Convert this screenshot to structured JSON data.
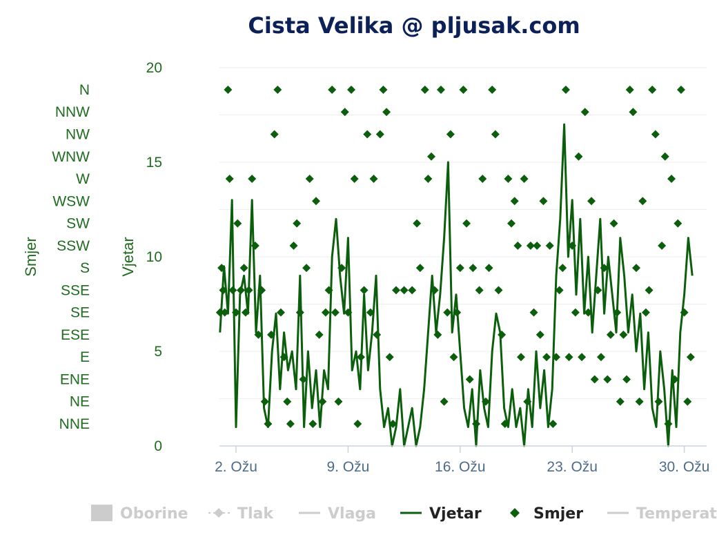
{
  "chart_data": {
    "type": "line",
    "title": "Cista Velika @ pljusak.com",
    "x_axis": {
      "ticks": [
        "2. Ožu",
        "9. Ožu",
        "16. Ožu",
        "23. Ožu",
        "30. Ožu"
      ],
      "tick_days": [
        2,
        9,
        16,
        23,
        30
      ],
      "range_days": [
        1,
        30.5
      ]
    },
    "y_axis_wind": {
      "title": "Vjetar",
      "ticks": [
        "0",
        "5",
        "10",
        "15",
        "20"
      ],
      "range": [
        0,
        20
      ]
    },
    "y_axis_direction": {
      "title": "Smjer",
      "categories": [
        "NNE",
        "NE",
        "ENE",
        "E",
        "ESE",
        "SE",
        "SSE",
        "S",
        "SSW",
        "SW",
        "WSW",
        "W",
        "WNW",
        "NW",
        "NNW",
        "N"
      ]
    },
    "legend": {
      "placement": "bottom",
      "items": [
        {
          "name": "Oborine",
          "symbol": "area",
          "visible": false
        },
        {
          "name": "Tlak",
          "symbol": "dashed-diamond",
          "visible": false
        },
        {
          "name": "Vlaga",
          "symbol": "line",
          "visible": false
        },
        {
          "name": "Vjetar",
          "symbol": "line",
          "visible": true
        },
        {
          "name": "Smjer",
          "symbol": "diamond",
          "visible": true
        },
        {
          "name": "Temperatu",
          "symbol": "line",
          "visible": false
        }
      ]
    },
    "colors": {
      "series": "#0b5e0b",
      "hidden": "#cccccc",
      "title": "#0c2158",
      "grid": "#eeeeee"
    },
    "series": [
      {
        "name": "Vjetar",
        "x_days": [
          1.0,
          1.25,
          1.5,
          1.75,
          2.0,
          2.25,
          2.5,
          2.75,
          3.0,
          3.25,
          3.5,
          3.75,
          4.0,
          4.25,
          4.5,
          4.75,
          5.0,
          5.25,
          5.5,
          5.75,
          6.0,
          6.25,
          6.5,
          6.75,
          7.0,
          7.25,
          7.5,
          7.75,
          8.0,
          8.25,
          8.5,
          8.75,
          9.0,
          9.25,
          9.5,
          9.75,
          10.0,
          10.25,
          10.5,
          10.75,
          11.0,
          11.25,
          11.5,
          11.75,
          12.0,
          12.25,
          12.5,
          12.75,
          13.0,
          13.25,
          13.5,
          13.75,
          14.0,
          14.25,
          14.5,
          14.75,
          15.0,
          15.25,
          15.5,
          15.75,
          16.0,
          16.25,
          16.5,
          16.75,
          17.0,
          17.25,
          17.5,
          17.75,
          18.0,
          18.25,
          18.5,
          18.75,
          19.0,
          19.25,
          19.5,
          19.75,
          20.0,
          20.25,
          20.5,
          20.75,
          21.0,
          21.25,
          21.5,
          21.75,
          22.0,
          22.25,
          22.5,
          22.75,
          23.0,
          23.25,
          23.5,
          23.75,
          24.0,
          24.25,
          24.5,
          24.75,
          25.0,
          25.25,
          25.5,
          25.75,
          26.0,
          26.25,
          26.5,
          26.75,
          27.0,
          27.25,
          27.5,
          27.75,
          28.0,
          28.25,
          28.5,
          28.75,
          29.0,
          29.25,
          29.5,
          29.75,
          30.0,
          30.25,
          30.5
        ],
        "values": [
          6,
          9.5,
          7,
          13,
          1,
          8,
          9,
          7,
          13,
          6,
          9,
          2,
          1,
          5,
          7,
          3,
          6,
          4,
          5,
          3,
          9,
          1,
          5,
          2,
          4,
          1,
          4,
          3,
          10,
          12,
          9,
          7,
          11,
          4,
          5,
          3,
          8,
          4,
          6,
          9,
          3,
          1,
          2,
          0,
          1,
          3,
          0,
          1,
          2,
          0,
          1,
          3,
          6,
          9,
          6,
          8,
          11,
          15,
          6,
          8,
          5,
          2,
          1,
          3,
          0,
          4,
          2,
          1,
          5,
          7,
          6,
          2,
          1,
          3,
          1,
          2,
          0,
          3,
          1,
          5,
          2,
          4,
          1,
          3,
          9,
          12,
          17,
          10,
          13,
          8,
          12,
          7,
          10,
          6,
          9,
          12,
          7,
          10,
          8,
          6,
          11,
          9,
          6,
          8,
          5,
          7,
          3,
          6,
          2,
          1,
          5,
          3,
          0,
          4,
          1,
          6,
          8,
          11,
          9
        ]
      },
      {
        "name": "Smjer",
        "points": [
          [
            1.0,
            "SE"
          ],
          [
            1.1,
            "S"
          ],
          [
            1.2,
            "SSE"
          ],
          [
            1.3,
            "SE"
          ],
          [
            1.5,
            "N"
          ],
          [
            1.6,
            "W"
          ],
          [
            1.8,
            "SSE"
          ],
          [
            2.0,
            "SE"
          ],
          [
            2.1,
            "SW"
          ],
          [
            2.3,
            "SSE"
          ],
          [
            2.5,
            "S"
          ],
          [
            2.6,
            "SE"
          ],
          [
            2.8,
            "SSE"
          ],
          [
            3.0,
            "W"
          ],
          [
            3.2,
            "SSW"
          ],
          [
            3.4,
            "ESE"
          ],
          [
            3.6,
            "SSE"
          ],
          [
            3.8,
            "NE"
          ],
          [
            4.0,
            "NNE"
          ],
          [
            4.2,
            "ESE"
          ],
          [
            4.4,
            "NW"
          ],
          [
            4.6,
            "N"
          ],
          [
            4.8,
            "SE"
          ],
          [
            5.0,
            "E"
          ],
          [
            5.2,
            "NE"
          ],
          [
            5.4,
            "NNE"
          ],
          [
            5.6,
            "SSW"
          ],
          [
            5.8,
            "SW"
          ],
          [
            6.0,
            "SE"
          ],
          [
            6.2,
            "ENE"
          ],
          [
            6.4,
            "S"
          ],
          [
            6.6,
            "W"
          ],
          [
            6.8,
            "NNE"
          ],
          [
            7.0,
            "WSW"
          ],
          [
            7.2,
            "ESE"
          ],
          [
            7.4,
            "NE"
          ],
          [
            7.6,
            "SE"
          ],
          [
            7.8,
            "SSE"
          ],
          [
            8.0,
            "N"
          ],
          [
            8.2,
            "SE"
          ],
          [
            8.4,
            "NE"
          ],
          [
            8.6,
            "S"
          ],
          [
            8.8,
            "NNW"
          ],
          [
            9.0,
            "SE"
          ],
          [
            9.2,
            "N"
          ],
          [
            9.4,
            "W"
          ],
          [
            9.6,
            "NNE"
          ],
          [
            9.8,
            "E"
          ],
          [
            10.0,
            "SSE"
          ],
          [
            10.2,
            "NW"
          ],
          [
            10.4,
            "SE"
          ],
          [
            10.6,
            "W"
          ],
          [
            10.8,
            "ESE"
          ],
          [
            11.0,
            "NW"
          ],
          [
            11.2,
            "N"
          ],
          [
            11.4,
            "NNW"
          ],
          [
            11.6,
            "E"
          ],
          [
            11.8,
            "NNE"
          ],
          [
            12.0,
            "SSE"
          ],
          [
            12.5,
            "SSE"
          ],
          [
            13.0,
            "SSE"
          ],
          [
            13.3,
            "SW"
          ],
          [
            13.5,
            "S"
          ],
          [
            13.8,
            "N"
          ],
          [
            14.0,
            "W"
          ],
          [
            14.2,
            "WNW"
          ],
          [
            14.4,
            "SSE"
          ],
          [
            14.6,
            "ESE"
          ],
          [
            14.8,
            "N"
          ],
          [
            15.0,
            "NE"
          ],
          [
            15.2,
            "SE"
          ],
          [
            15.4,
            "NW"
          ],
          [
            15.6,
            "E"
          ],
          [
            15.8,
            "SE"
          ],
          [
            16.0,
            "S"
          ],
          [
            16.2,
            "N"
          ],
          [
            16.4,
            "SW"
          ],
          [
            16.6,
            "ENE"
          ],
          [
            16.8,
            "S"
          ],
          [
            17.0,
            "NNE"
          ],
          [
            17.2,
            "SSE"
          ],
          [
            17.4,
            "W"
          ],
          [
            17.6,
            "NE"
          ],
          [
            17.8,
            "S"
          ],
          [
            18.0,
            "N"
          ],
          [
            18.2,
            "NW"
          ],
          [
            18.4,
            "SSE"
          ],
          [
            18.6,
            "ESE"
          ],
          [
            18.8,
            "NNE"
          ],
          [
            19.0,
            "W"
          ],
          [
            19.2,
            "SW"
          ],
          [
            19.4,
            "WSW"
          ],
          [
            19.6,
            "SSW"
          ],
          [
            19.8,
            "E"
          ],
          [
            20.0,
            "W"
          ],
          [
            20.2,
            "NE"
          ],
          [
            20.4,
            "SSW"
          ],
          [
            20.6,
            "SE"
          ],
          [
            20.8,
            "SSW"
          ],
          [
            21.0,
            "ESE"
          ],
          [
            21.2,
            "WSW"
          ],
          [
            21.4,
            "E"
          ],
          [
            21.6,
            "SSW"
          ],
          [
            21.8,
            "NNE"
          ],
          [
            22.0,
            "E"
          ],
          [
            22.2,
            "SSE"
          ],
          [
            22.4,
            "S"
          ],
          [
            22.6,
            "N"
          ],
          [
            22.8,
            "E"
          ],
          [
            23.0,
            "SSW"
          ],
          [
            23.2,
            "SE"
          ],
          [
            23.4,
            "WNW"
          ],
          [
            23.6,
            "E"
          ],
          [
            23.8,
            "NNW"
          ],
          [
            24.0,
            "SE"
          ],
          [
            24.2,
            "WSW"
          ],
          [
            24.4,
            "ENE"
          ],
          [
            24.6,
            "SSE"
          ],
          [
            24.8,
            "E"
          ],
          [
            25.0,
            "S"
          ],
          [
            25.2,
            "ENE"
          ],
          [
            25.4,
            "ESE"
          ],
          [
            25.6,
            "SW"
          ],
          [
            25.8,
            "SE"
          ],
          [
            26.0,
            "NE"
          ],
          [
            26.2,
            "ESE"
          ],
          [
            26.4,
            "ENE"
          ],
          [
            26.6,
            "N"
          ],
          [
            26.8,
            "NNW"
          ],
          [
            27.0,
            "S"
          ],
          [
            27.2,
            "NE"
          ],
          [
            27.4,
            "WSW"
          ],
          [
            27.6,
            "SE"
          ],
          [
            27.8,
            "SSE"
          ],
          [
            28.0,
            "N"
          ],
          [
            28.2,
            "NW"
          ],
          [
            28.4,
            "NE"
          ],
          [
            28.6,
            "SSW"
          ],
          [
            28.8,
            "WNW"
          ],
          [
            29.0,
            "NNE"
          ],
          [
            29.2,
            "W"
          ],
          [
            29.4,
            "ENE"
          ],
          [
            29.6,
            "SW"
          ],
          [
            29.8,
            "N"
          ],
          [
            30.0,
            "SE"
          ],
          [
            30.2,
            "NE"
          ],
          [
            30.4,
            "E"
          ]
        ]
      }
    ]
  }
}
